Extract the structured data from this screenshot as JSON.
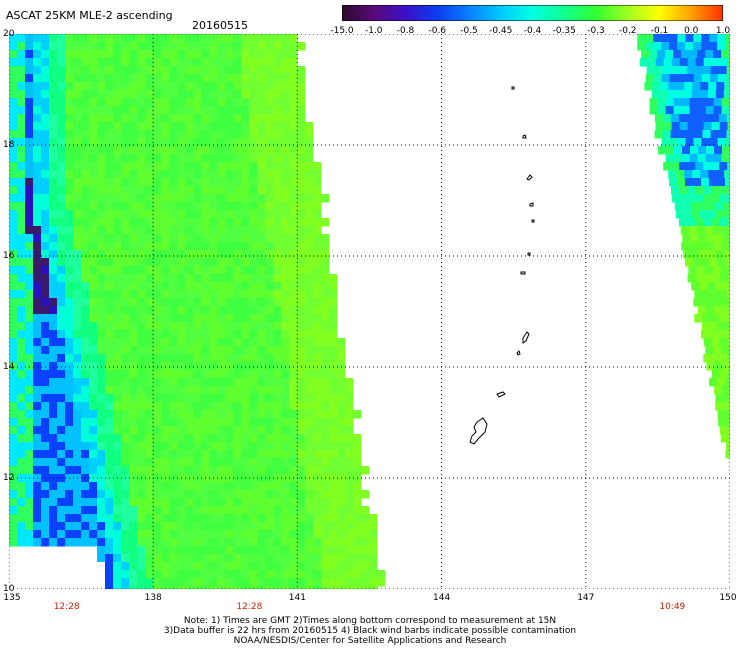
{
  "header": {
    "title": "ASCAT 25KM MLE-2 ascending",
    "date": "20160515"
  },
  "colorbar": {
    "labels": [
      "-15.0",
      "-1.0",
      "-0.8",
      "-0.6",
      "-0.5",
      "-0.45",
      "-0.4",
      "-0.35",
      "-0.3",
      "-0.2",
      "-0.1",
      "0.0",
      "1.0"
    ],
    "colors": [
      "#2a0a2a",
      "#5a0a7a",
      "#3a10c8",
      "#0c3cf0",
      "#0a80ff",
      "#00c8ff",
      "#00ffe0",
      "#10ff90",
      "#30ff30",
      "#a0ff20",
      "#ffff00",
      "#ffa000",
      "#ff3000"
    ]
  },
  "map": {
    "lat_labels": [
      "20",
      "18",
      "16",
      "14",
      "12",
      "10"
    ],
    "lon_labels": [
      "135",
      "138",
      "141",
      "144",
      "147",
      "150"
    ],
    "time_labels": [
      {
        "text": "12:28",
        "lon": 136.2
      },
      {
        "text": "12:28",
        "lon": 140.0
      },
      {
        "text": "10:49",
        "lon": 148.8
      }
    ],
    "lon_range": [
      135,
      150
    ],
    "lat_range": [
      10,
      20
    ],
    "grid": "dotted"
  },
  "notes": {
    "line1": "Note: 1) Times are GMT 2)Times along bottom correspond to measurement at 15N",
    "line2": "3)Data buffer is 22 hrs from 20160515 4) Black wind barbs indicate possible contamination",
    "line3": "NOAA/NESDIS/Center for Satellite Applications and Research"
  }
}
